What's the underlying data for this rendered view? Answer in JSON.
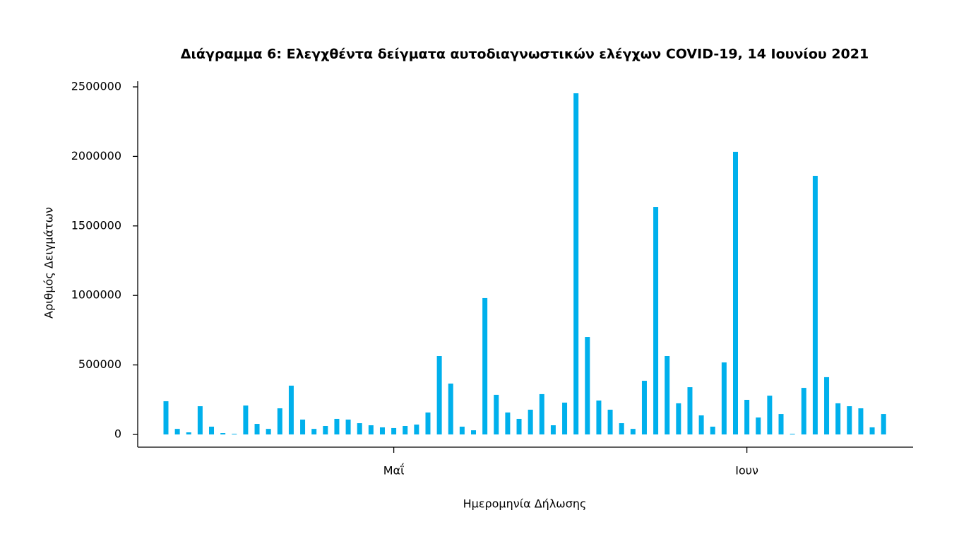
{
  "chart_data": {
    "type": "bar",
    "title": "Διάγραμμα 6: Ελεγχθέντα δείγματα αυτοδιαγνωστικών ελέγχων COVID-19, 14 Ιουνίου 2021",
    "x_label": "Ημερομηνία Δήλωσης",
    "y_label": "Αριθμός Δειγμάτων",
    "color": "#00b0ec",
    "x": [
      "04-11",
      "04-12",
      "04-13",
      "04-14",
      "04-15",
      "04-16",
      "04-17",
      "04-18",
      "04-19",
      "04-20",
      "04-21",
      "04-22",
      "04-23",
      "04-24",
      "04-25",
      "04-26",
      "04-27",
      "04-28",
      "04-29",
      "04-30",
      "05-01",
      "05-02",
      "05-03",
      "05-04",
      "05-05",
      "05-06",
      "05-07",
      "05-08",
      "05-09",
      "05-10",
      "05-11",
      "05-12",
      "05-13",
      "05-14",
      "05-15",
      "05-16",
      "05-17",
      "05-18",
      "05-19",
      "05-20",
      "05-21",
      "05-22",
      "05-23",
      "05-24",
      "05-25",
      "05-26",
      "05-27",
      "05-28",
      "05-29",
      "05-30",
      "05-31",
      "06-01",
      "06-02",
      "06-03",
      "06-04",
      "06-05",
      "06-06",
      "06-07",
      "06-08",
      "06-09",
      "06-10",
      "06-11",
      "06-12",
      "06-13"
    ],
    "values": [
      239000,
      40000,
      15000,
      203000,
      56000,
      10000,
      5000,
      208000,
      76000,
      40000,
      188000,
      351000,
      107000,
      40000,
      61000,
      112000,
      107000,
      81000,
      66000,
      51000,
      46000,
      61000,
      71000,
      158000,
      564000,
      366000,
      56000,
      30000,
      981000,
      285000,
      158000,
      112000,
      178000,
      290000,
      66000,
      229000,
      2454000,
      701000,
      244000,
      178000,
      81000,
      40000,
      386000,
      1636000,
      564000,
      224000,
      340000,
      137000,
      56000,
      518000,
      2033000,
      249000,
      122000,
      279000,
      147000,
      5000,
      335000,
      1860000,
      412000,
      224000,
      203000,
      188000,
      51000,
      147000
    ],
    "xticks": [
      {
        "value": "05-01",
        "label": "Μαΐ"
      },
      {
        "value": "06-01",
        "label": "Ιουν"
      }
    ],
    "ylim": [
      0,
      2500000
    ],
    "yticks": [
      0,
      500000,
      1000000,
      1500000,
      2000000,
      2500000
    ],
    "grid": false
  }
}
